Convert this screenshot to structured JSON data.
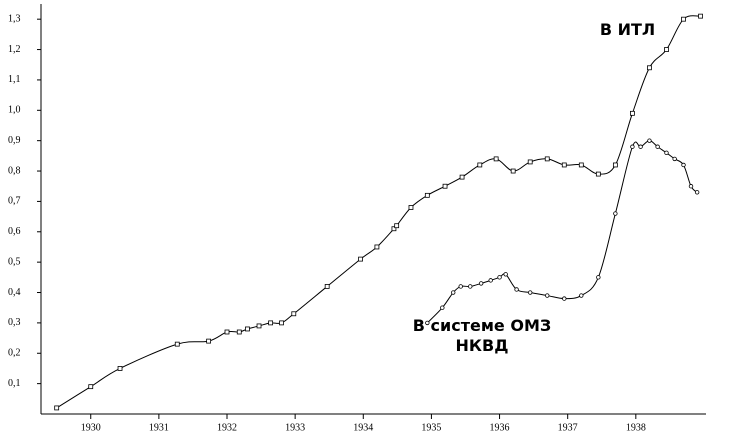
{
  "chart_data": {
    "type": "line",
    "series": [
      {
        "name": "В ИТЛ",
        "color": "#000000",
        "marker": "square",
        "x": [
          1929.5,
          1930.0,
          1930.43,
          1931.27,
          1931.73,
          1932.0,
          1932.18,
          1932.3,
          1932.47,
          1932.64,
          1932.8,
          1932.98,
          1933.47,
          1933.96,
          1934.2,
          1934.45,
          1934.49,
          1934.7,
          1934.94,
          1935.2,
          1935.45,
          1935.71,
          1935.95,
          1936.2,
          1936.45,
          1936.7,
          1936.95,
          1937.2,
          1937.45,
          1937.7,
          1937.95,
          1938.2,
          1938.45,
          1938.7,
          1938.95
        ],
        "values": [
          0.02,
          0.09,
          0.15,
          0.23,
          0.24,
          0.27,
          0.27,
          0.28,
          0.29,
          0.3,
          0.3,
          0.33,
          0.42,
          0.51,
          0.55,
          0.61,
          0.62,
          0.68,
          0.72,
          0.75,
          0.78,
          0.82,
          0.84,
          0.8,
          0.83,
          0.84,
          0.82,
          0.82,
          0.79,
          0.82,
          0.99,
          1.14,
          1.2,
          1.3,
          1.31
        ]
      },
      {
        "name": "В системе ОМЗ НКВД",
        "color": "#000000",
        "marker": "circle",
        "x": [
          1934.94,
          1935.16,
          1935.32,
          1935.43,
          1935.57,
          1935.73,
          1935.87,
          1936.0,
          1936.09,
          1936.25,
          1936.45,
          1936.7,
          1936.95,
          1937.2,
          1937.45,
          1937.7,
          1937.95,
          1938.07,
          1938.2,
          1938.32,
          1938.45,
          1938.57,
          1938.7,
          1938.81,
          1938.9
        ],
        "values": [
          0.3,
          0.35,
          0.4,
          0.42,
          0.42,
          0.43,
          0.44,
          0.45,
          0.46,
          0.41,
          0.4,
          0.39,
          0.38,
          0.39,
          0.45,
          0.66,
          0.88,
          0.88,
          0.9,
          0.88,
          0.86,
          0.84,
          0.82,
          0.75,
          0.73
        ]
      }
    ],
    "xlim": [
      1929.27,
      1939.03
    ],
    "xticks": [
      1930,
      1931,
      1932,
      1933,
      1934,
      1935,
      1936,
      1937,
      1938
    ],
    "ylim": [
      0,
      1.35
    ],
    "yticks": [
      {
        "value": 0.1,
        "label": "0,1"
      },
      {
        "value": 0.2,
        "label": "0,2"
      },
      {
        "value": 0.3,
        "label": "0,3"
      },
      {
        "value": 0.4,
        "label": "0,4"
      },
      {
        "value": 0.5,
        "label": "0,5"
      },
      {
        "value": 0.6,
        "label": "0,6"
      },
      {
        "value": 0.7,
        "label": "0,7"
      },
      {
        "value": 0.8,
        "label": "0,8"
      },
      {
        "value": 0.9,
        "label": "0,9"
      },
      {
        "value": 1.0,
        "label": "1,0"
      },
      {
        "value": 1.1,
        "label": "1,1"
      },
      {
        "value": 1.2,
        "label": "1,2"
      },
      {
        "value": 1.3,
        "label": "1,3"
      }
    ]
  }
}
